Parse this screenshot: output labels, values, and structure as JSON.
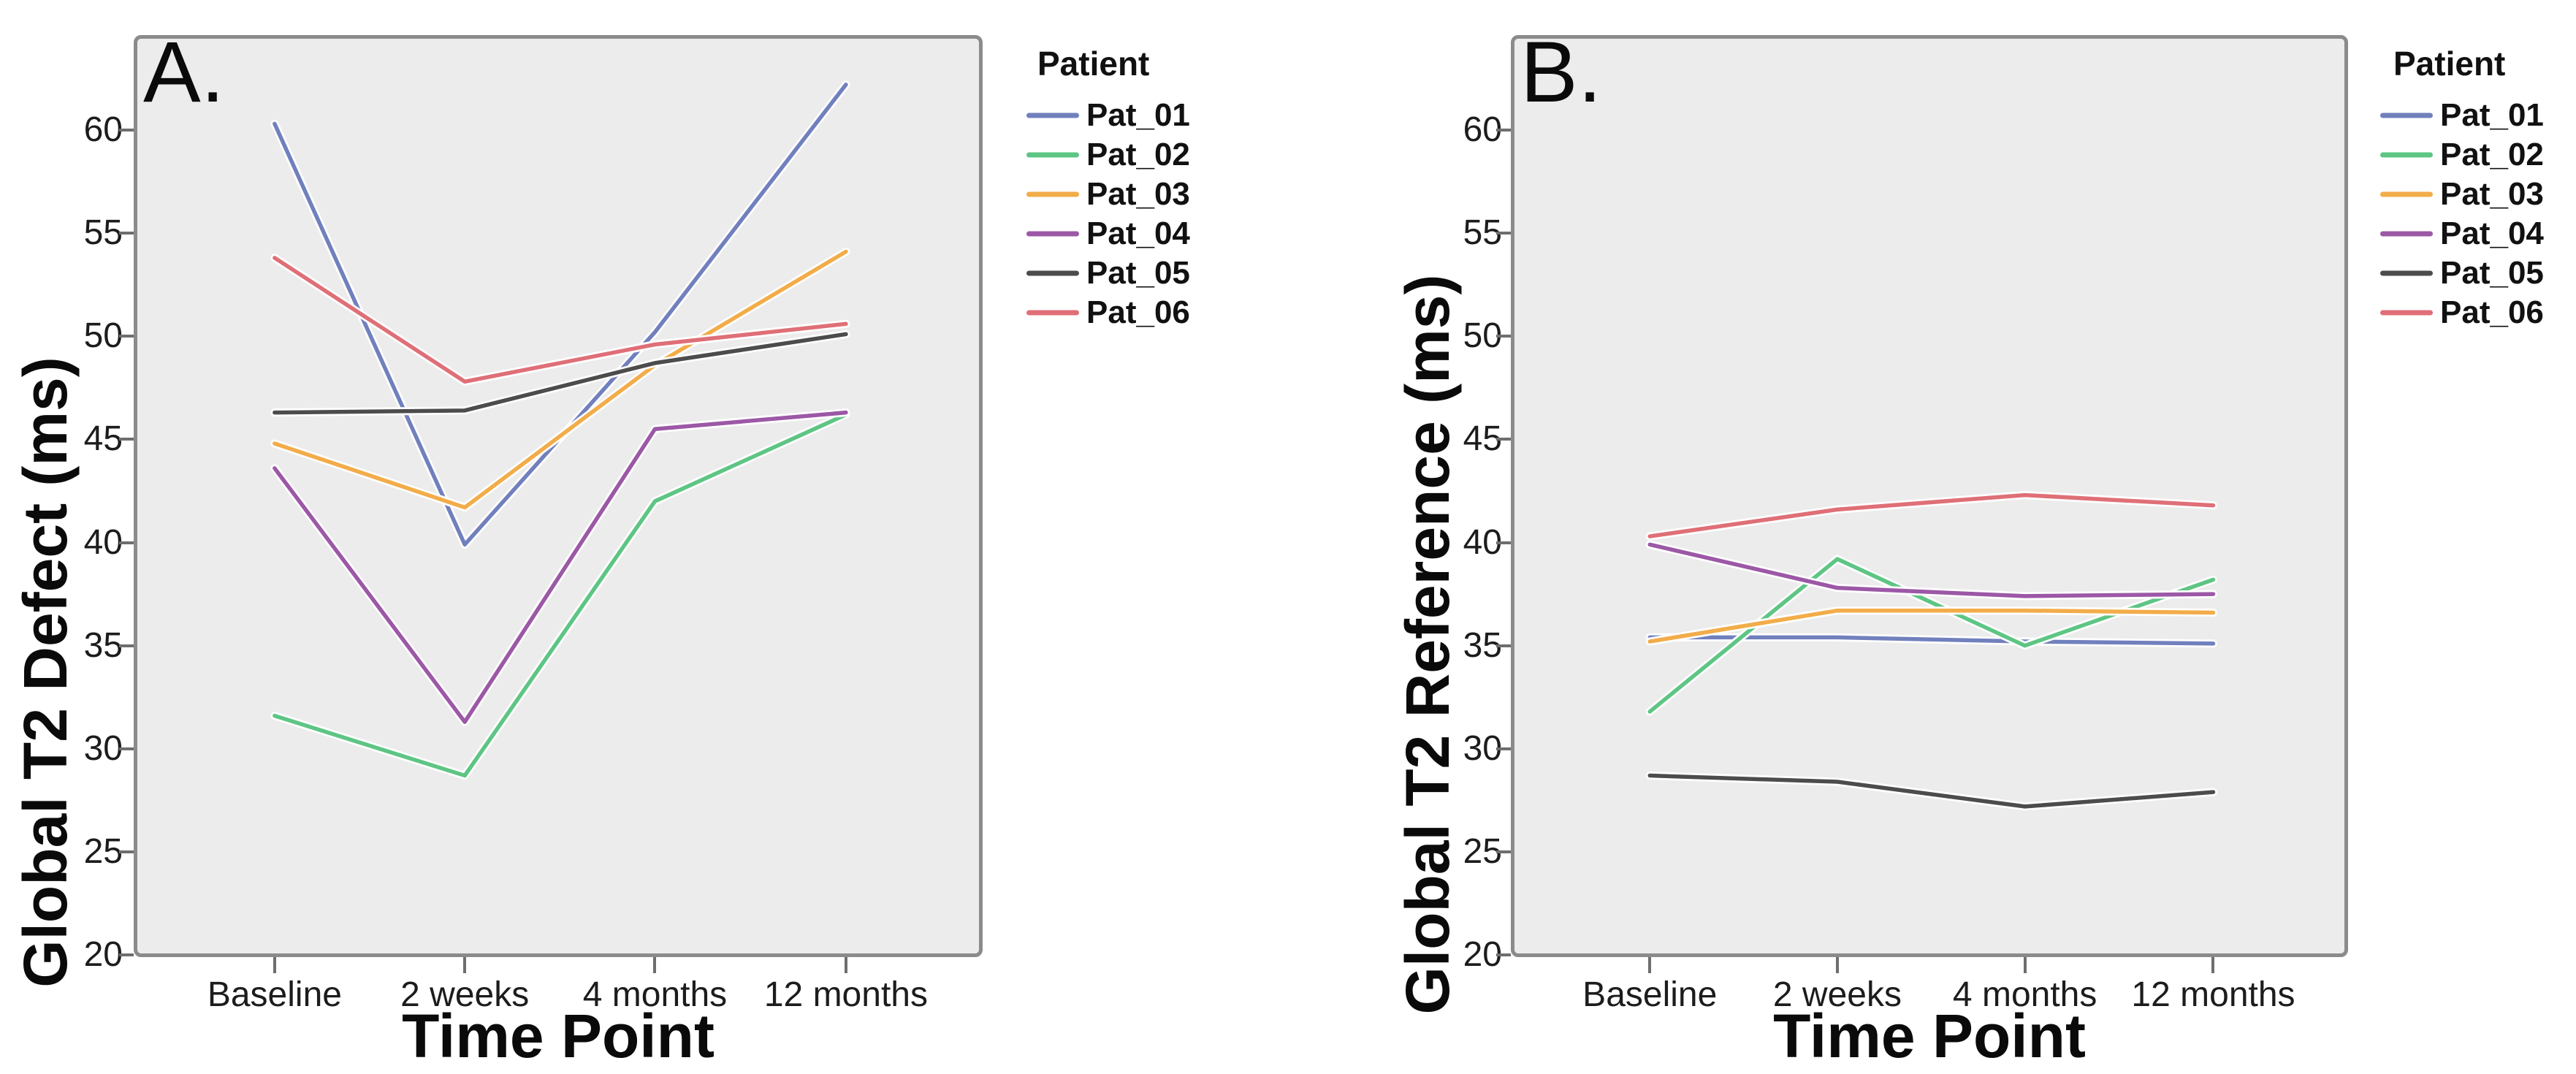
{
  "figure": {
    "background": "#ffffff",
    "plot_background": "#ECECEC",
    "frame_color": "#8B8B8B",
    "tick_color": "#6e6e6e",
    "text_color": "#1c1c1c"
  },
  "chart_data": [
    {
      "type": "line",
      "panel_label": "A.",
      "xlabel": "Time Point",
      "ylabel": "Global T2 Defect (ms)",
      "legend_title": "Patient",
      "legend_position": "right",
      "grid": false,
      "categories": [
        "Baseline",
        "2 weeks",
        "4 months",
        "12 months"
      ],
      "y_ticks": [
        60,
        55,
        50,
        45,
        40,
        35,
        30,
        25,
        20
      ],
      "ylim": [
        19.9,
        64.6
      ],
      "series": [
        {
          "name": "Pat_01",
          "color": "#7180BD",
          "values": [
            60.3,
            39.9,
            50.2,
            62.2
          ]
        },
        {
          "name": "Pat_02",
          "color": "#5EC584",
          "values": [
            31.6,
            28.7,
            42.0,
            46.2
          ]
        },
        {
          "name": "Pat_03",
          "color": "#F2AC49",
          "values": [
            44.8,
            41.7,
            48.6,
            54.1
          ]
        },
        {
          "name": "Pat_04",
          "color": "#9C58A6",
          "values": [
            43.6,
            31.3,
            45.5,
            46.3
          ]
        },
        {
          "name": "Pat_05",
          "color": "#4C4C4C",
          "values": [
            46.3,
            46.4,
            48.7,
            50.1
          ]
        },
        {
          "name": "Pat_06",
          "color": "#DF6F77",
          "values": [
            53.8,
            47.8,
            49.6,
            50.6
          ]
        }
      ]
    },
    {
      "type": "line",
      "panel_label": "B.",
      "xlabel": "Time Point",
      "ylabel": "Global T2 Reference (ms)",
      "legend_title": "Patient",
      "legend_position": "right",
      "grid": false,
      "categories": [
        "Baseline",
        "2 weeks",
        "4 months",
        "12 months"
      ],
      "y_ticks": [
        60,
        55,
        50,
        45,
        40,
        35,
        30,
        25,
        20
      ],
      "ylim": [
        19.9,
        64.6
      ],
      "series": [
        {
          "name": "Pat_01",
          "color": "#7180BD",
          "values": [
            35.4,
            35.4,
            35.2,
            35.1
          ]
        },
        {
          "name": "Pat_02",
          "color": "#5EC584",
          "values": [
            31.8,
            39.2,
            35.0,
            38.2
          ]
        },
        {
          "name": "Pat_03",
          "color": "#F2AC49",
          "values": [
            35.2,
            36.7,
            36.7,
            36.6
          ]
        },
        {
          "name": "Pat_04",
          "color": "#9C58A6",
          "values": [
            39.9,
            37.8,
            37.4,
            37.5
          ]
        },
        {
          "name": "Pat_05",
          "color": "#4C4C4C",
          "values": [
            28.7,
            28.4,
            27.2,
            27.9
          ]
        },
        {
          "name": "Pat_06",
          "color": "#DF6F77",
          "values": [
            40.3,
            41.6,
            42.3,
            41.8
          ]
        }
      ]
    }
  ]
}
